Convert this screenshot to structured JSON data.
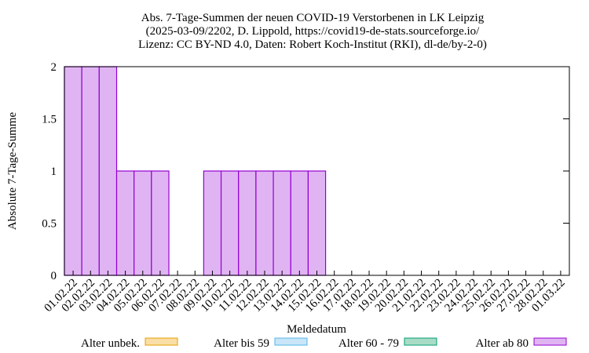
{
  "chart_data": {
    "type": "bar",
    "stacked": true,
    "title": "Abs. 7-Tage-Summen der neuen COVID-19 Verstorbenen in LK Leipzig",
    "subtitle": [
      "(2025-03-09/2202, D. Lippold, https://covid19-de-stats.sourceforge.io/",
      "Lizenz: CC BY-ND 4.0, Daten: Robert Koch-Institut (RKI), dl-de/by-2-0)"
    ],
    "x_label": "Meldedatum",
    "y_label": "Absolute 7-Tage-Summe",
    "categories": [
      "01.02.22",
      "02.02.22",
      "03.02.22",
      "04.02.22",
      "05.02.22",
      "06.02.22",
      "07.02.22",
      "08.02.22",
      "09.02.22",
      "10.02.22",
      "11.02.22",
      "12.02.22",
      "13.02.22",
      "14.02.22",
      "15.02.22",
      "16.02.22",
      "17.02.22",
      "18.02.22",
      "19.02.22",
      "20.02.22",
      "21.02.22",
      "22.02.22",
      "23.02.22",
      "24.02.22",
      "25.02.22",
      "26.02.22",
      "27.02.22",
      "28.02.22",
      "01.03.22"
    ],
    "series": [
      {
        "name": "Alter unbek.",
        "color": "#f9dea6",
        "edge": "#e69f00",
        "values": [
          0,
          0,
          0,
          0,
          0,
          0,
          0,
          0,
          0,
          0,
          0,
          0,
          0,
          0,
          0,
          0,
          0,
          0,
          0,
          0,
          0,
          0,
          0,
          0,
          0,
          0,
          0,
          0,
          0
        ]
      },
      {
        "name": "Alter bis 59",
        "color": "#c8e6f8",
        "edge": "#56b4e9",
        "values": [
          0,
          0,
          0,
          0,
          0,
          0,
          0,
          0,
          0,
          0,
          0,
          0,
          0,
          0,
          0,
          0,
          0,
          0,
          0,
          0,
          0,
          0,
          0,
          0,
          0,
          0,
          0,
          0,
          0
        ]
      },
      {
        "name": "Alter 60 - 79",
        "color": "#a8dcc6",
        "edge": "#009e73",
        "values": [
          0,
          0,
          0,
          0,
          0,
          0,
          0,
          0,
          0,
          0,
          0,
          0,
          0,
          0,
          0,
          0,
          0,
          0,
          0,
          0,
          0,
          0,
          0,
          0,
          0,
          0,
          0,
          0,
          0
        ]
      },
      {
        "name": "Alter ab 80",
        "color": "#e0b4f2",
        "edge": "#9400d3",
        "values": [
          2,
          2,
          2,
          1,
          1,
          1,
          0,
          0,
          1,
          1,
          1,
          1,
          1,
          1,
          1,
          0,
          0,
          0,
          0,
          0,
          0,
          0,
          0,
          0,
          0,
          0,
          0,
          0,
          0
        ]
      }
    ],
    "ylim": [
      0,
      2
    ],
    "yticks": [
      0,
      0.5,
      1,
      1.5,
      2
    ],
    "grid": false
  }
}
